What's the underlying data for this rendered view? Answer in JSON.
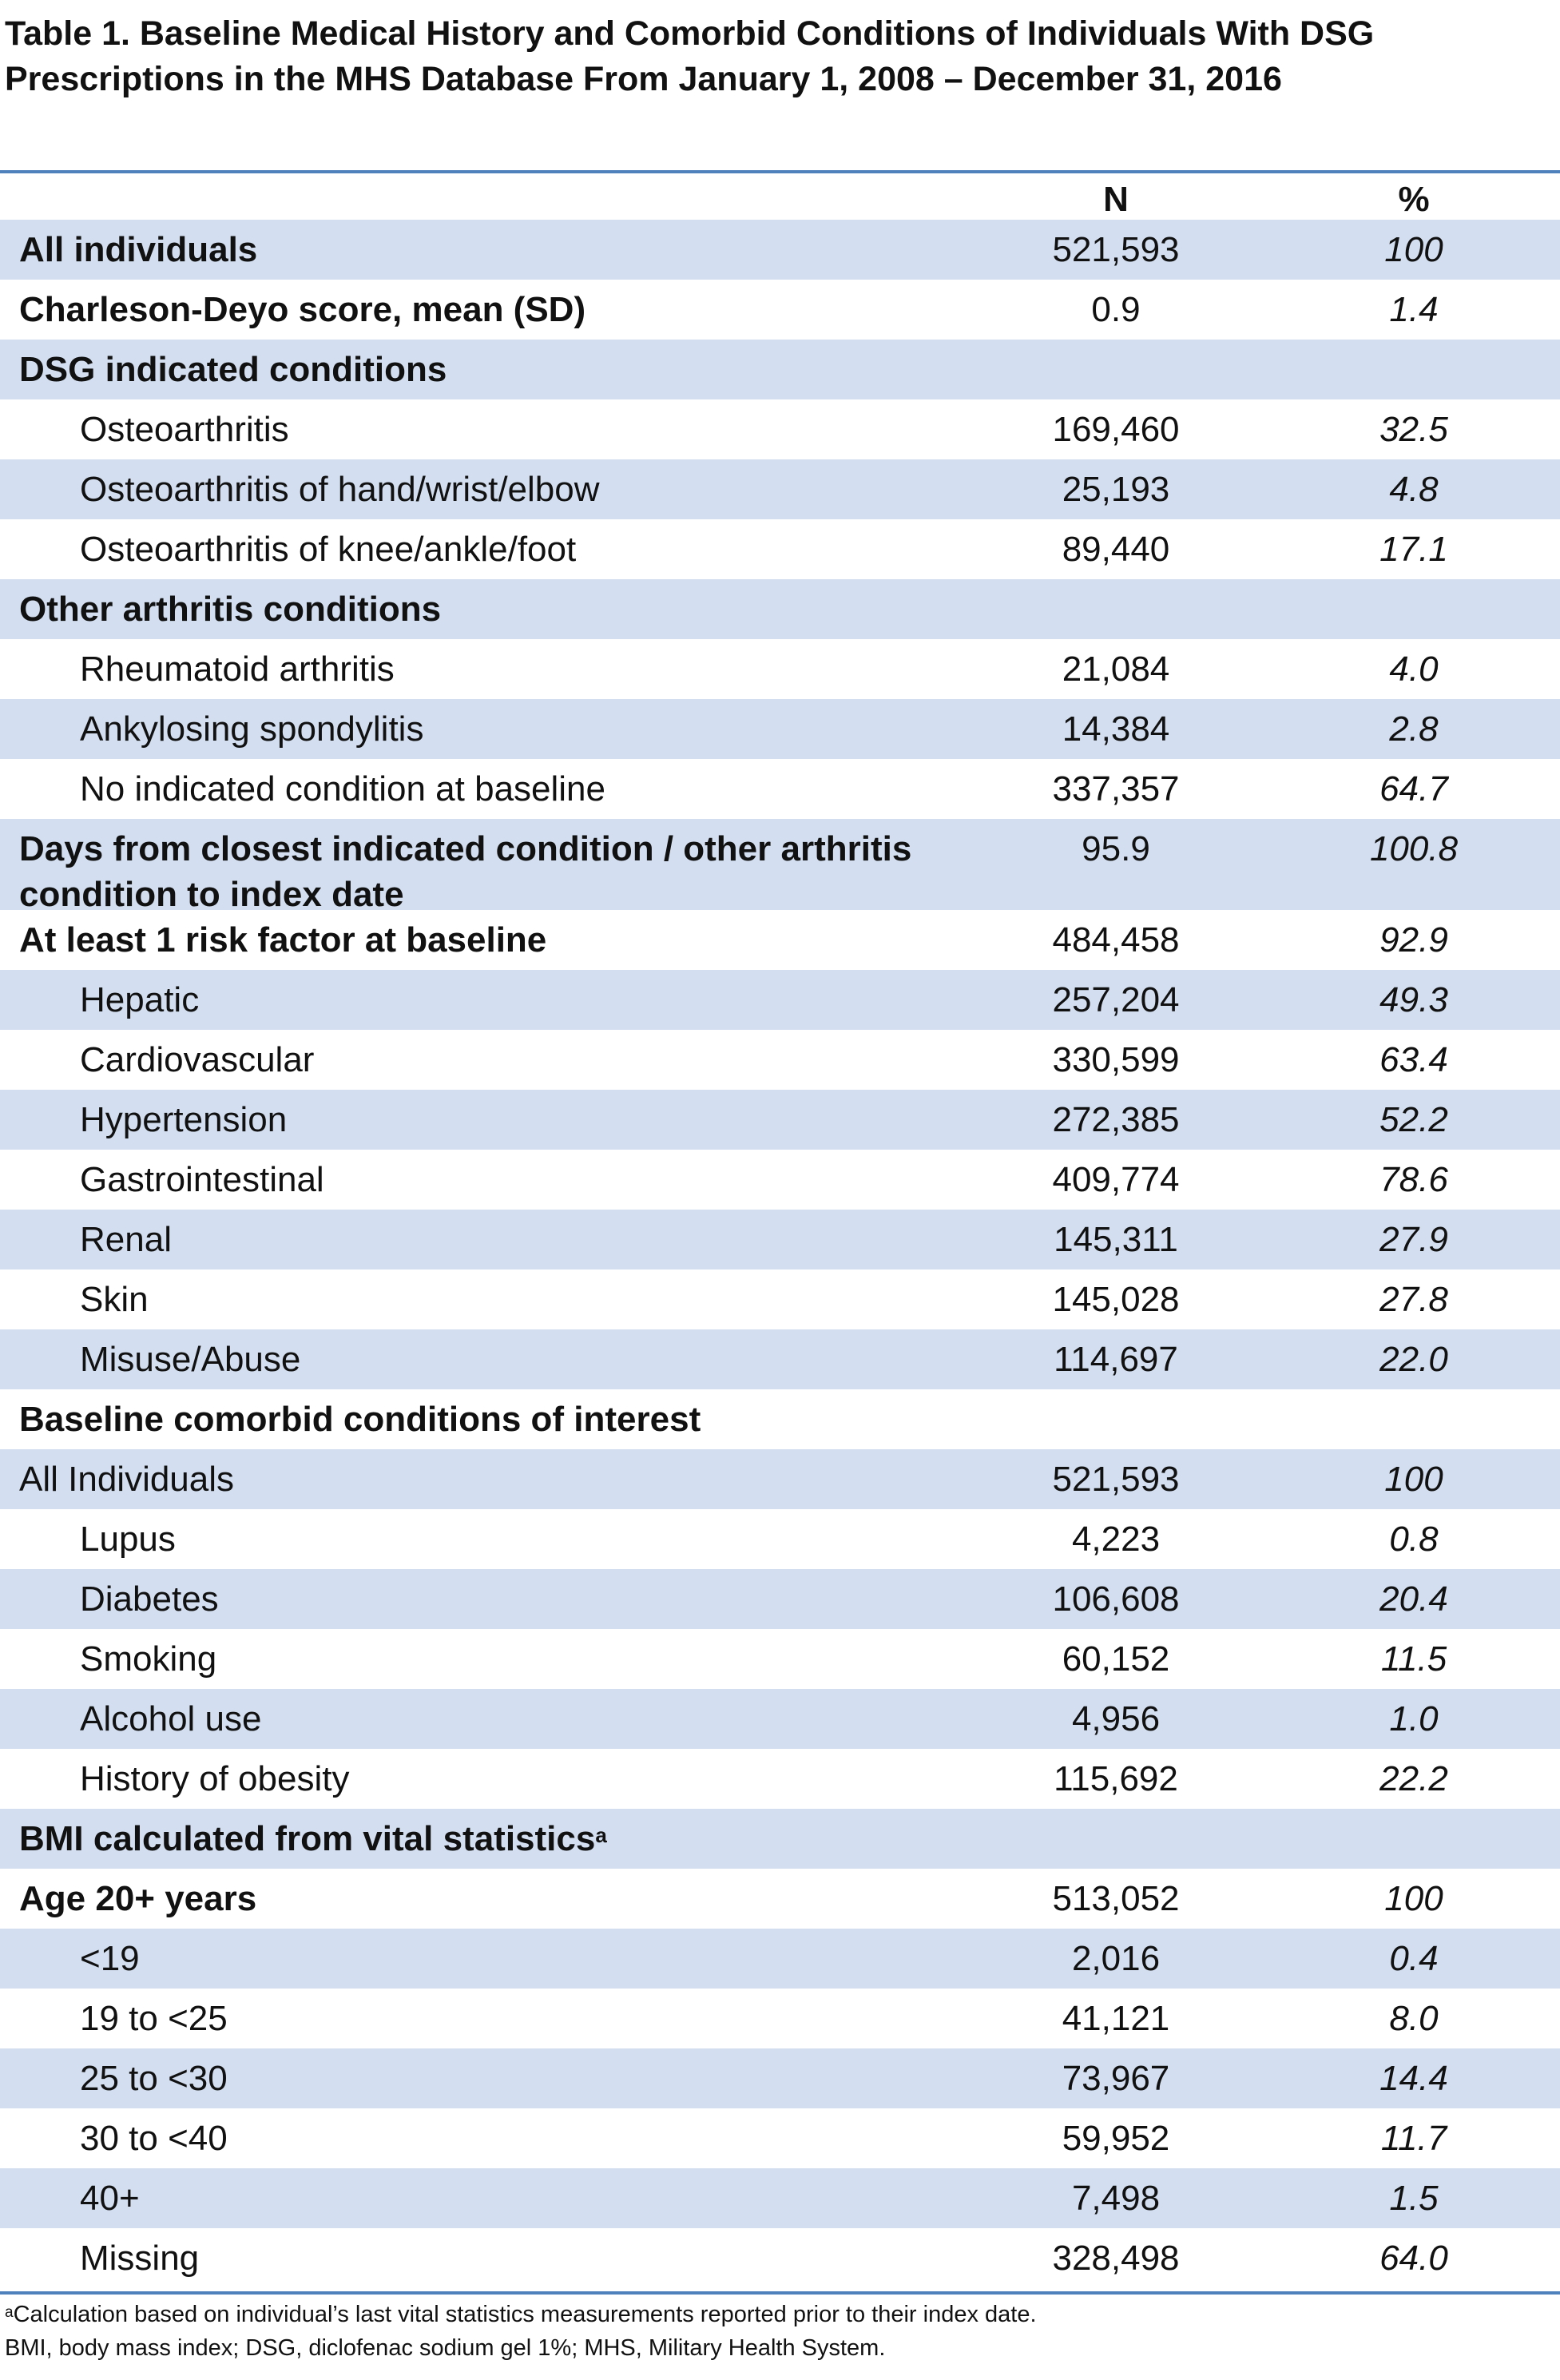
{
  "title": "Table 1. Baseline Medical History and Comorbid Conditions of Individuals With DSG Prescriptions in the MHS Database From January 1, 2008 – December 31, 2016",
  "columns": {
    "n": "N",
    "pct": "%"
  },
  "rows": [
    {
      "label": "All individuals",
      "n": "521,593",
      "pct": "100",
      "bold": true,
      "sub": false,
      "shade": true
    },
    {
      "label": "Charleson-Deyo score, mean (SD)",
      "n": "0.9",
      "pct": "1.4",
      "bold": true,
      "sub": false,
      "shade": false
    },
    {
      "label": "DSG indicated conditions",
      "n": "",
      "pct": "",
      "bold": true,
      "sub": false,
      "shade": true
    },
    {
      "label": "Osteoarthritis",
      "n": "169,460",
      "pct": "32.5",
      "bold": false,
      "sub": true,
      "shade": false
    },
    {
      "label": "Osteoarthritis of hand/wrist/elbow",
      "n": "25,193",
      "pct": "4.8",
      "bold": false,
      "sub": true,
      "shade": true
    },
    {
      "label": "Osteoarthritis of knee/ankle/foot",
      "n": "89,440",
      "pct": "17.1",
      "bold": false,
      "sub": true,
      "shade": false
    },
    {
      "label": "Other arthritis conditions",
      "n": "",
      "pct": "",
      "bold": true,
      "sub": false,
      "shade": true
    },
    {
      "label": "Rheumatoid arthritis",
      "n": "21,084",
      "pct": "4.0",
      "bold": false,
      "sub": true,
      "shade": false
    },
    {
      "label": "Ankylosing spondylitis",
      "n": "14,384",
      "pct": "2.8",
      "bold": false,
      "sub": true,
      "shade": true
    },
    {
      "label": "No indicated condition at baseline",
      "n": "337,357",
      "pct": "64.7",
      "bold": false,
      "sub": true,
      "shade": false
    },
    {
      "label": "Days from closest indicated condition / other arthritis condition to index date",
      "n": "95.9",
      "pct": "100.8",
      "bold": true,
      "sub": false,
      "shade": true,
      "tall": true
    },
    {
      "label": "At least 1 risk factor at baseline",
      "n": "484,458",
      "pct": "92.9",
      "bold": true,
      "sub": false,
      "shade": false
    },
    {
      "label": "Hepatic",
      "n": "257,204",
      "pct": "49.3",
      "bold": false,
      "sub": true,
      "shade": true
    },
    {
      "label": "Cardiovascular",
      "n": "330,599",
      "pct": "63.4",
      "bold": false,
      "sub": true,
      "shade": false
    },
    {
      "label": "Hypertension",
      "n": "272,385",
      "pct": "52.2",
      "bold": false,
      "sub": true,
      "shade": true
    },
    {
      "label": "Gastrointestinal",
      "n": "409,774",
      "pct": "78.6",
      "bold": false,
      "sub": true,
      "shade": false
    },
    {
      "label": "Renal",
      "n": "145,311",
      "pct": "27.9",
      "bold": false,
      "sub": true,
      "shade": true
    },
    {
      "label": "Skin",
      "n": "145,028",
      "pct": "27.8",
      "bold": false,
      "sub": true,
      "shade": false
    },
    {
      "label": "Misuse/Abuse",
      "n": "114,697",
      "pct": "22.0",
      "bold": false,
      "sub": true,
      "shade": true
    },
    {
      "label": "Baseline comorbid conditions of interest",
      "n": "",
      "pct": "",
      "bold": true,
      "sub": false,
      "shade": false
    },
    {
      "label": "All Individuals",
      "n": "521,593",
      "pct": "100",
      "bold": false,
      "sub": false,
      "shade": true
    },
    {
      "label": "Lupus",
      "n": "4,223",
      "pct": "0.8",
      "bold": false,
      "sub": true,
      "shade": false
    },
    {
      "label": "Diabetes",
      "n": "106,608",
      "pct": "20.4",
      "bold": false,
      "sub": true,
      "shade": true
    },
    {
      "label": "Smoking",
      "n": "60,152",
      "pct": "11.5",
      "bold": false,
      "sub": true,
      "shade": false
    },
    {
      "label": "Alcohol use",
      "n": "4,956",
      "pct": "1.0",
      "bold": false,
      "sub": true,
      "shade": true
    },
    {
      "label": "History of obesity",
      "n": "115,692",
      "pct": "22.2",
      "bold": false,
      "sub": true,
      "shade": false
    },
    {
      "label": "BMI calculated from vital statistics",
      "sup": "a",
      "n": "",
      "pct": "",
      "bold": true,
      "sub": false,
      "shade": true
    },
    {
      "label": "Age 20+ years",
      "n": "513,052",
      "pct": "100",
      "bold": true,
      "sub": false,
      "shade": false
    },
    {
      "label": "<19",
      "n": "2,016",
      "pct": "0.4",
      "bold": false,
      "sub": true,
      "shade": true
    },
    {
      "label": "19 to <25",
      "n": "41,121",
      "pct": "8.0",
      "bold": false,
      "sub": true,
      "shade": false
    },
    {
      "label": "25 to <30",
      "n": "73,967",
      "pct": "14.4",
      "bold": false,
      "sub": true,
      "shade": true
    },
    {
      "label": "30 to <40",
      "n": "59,952",
      "pct": "11.7",
      "bold": false,
      "sub": true,
      "shade": false
    },
    {
      "label": "40+",
      "n": "7,498",
      "pct": "1.5",
      "bold": false,
      "sub": true,
      "shade": true
    },
    {
      "label": "Missing",
      "n": "328,498",
      "pct": "64.0",
      "bold": false,
      "sub": true,
      "shade": false
    }
  ],
  "footnotes": {
    "a_marker": "a",
    "a_text": "Calculation based on individual’s last vital statistics measurements reported prior to their index date.",
    "abbrev": "BMI, body mass index; DSG, diclofenac sodium gel 1%; MHS, Military Health System."
  },
  "colors": {
    "rule": "#4f81bd",
    "shade": "#d3dff0"
  }
}
